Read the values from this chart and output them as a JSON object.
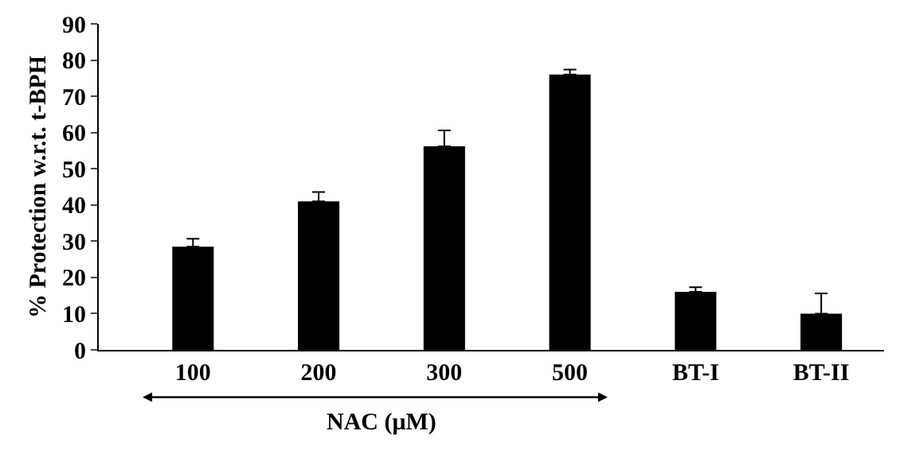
{
  "chart_data": {
    "type": "bar",
    "ylabel": "% Protection w.r.t. t-BPH",
    "categories": [
      "100",
      "200",
      "300",
      "500",
      "BT-I",
      "BT-II"
    ],
    "values": [
      28.5,
      41,
      56.2,
      76,
      16,
      10
    ],
    "errors": [
      [
        28.5,
        30.7
      ],
      [
        41,
        43.6
      ],
      [
        56.2,
        60.6
      ],
      [
        76,
        77.4
      ],
      [
        16,
        17.3
      ],
      [
        10,
        15.6
      ]
    ],
    "color": "#000000",
    "ylim": [
      0,
      90
    ],
    "yticks": [
      0,
      10,
      20,
      30,
      40,
      50,
      60,
      70,
      80,
      90
    ],
    "legend": false,
    "annotations": [
      "NAC (μM)"
    ]
  }
}
